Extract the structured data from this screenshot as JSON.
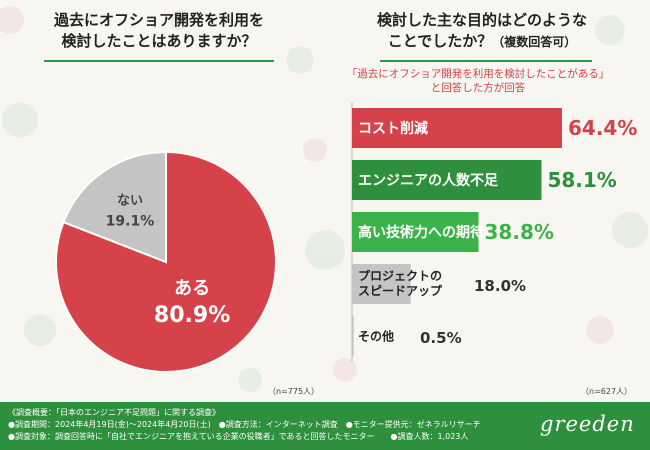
{
  "left_panel": {
    "title_line1": "過去にオフショア開発を利用を",
    "title_line2": "検討したことはありますか？",
    "sample_size": "（n=775人）"
  },
  "right_panel": {
    "title_line1": "検討した主な目的はどのような",
    "title_line2": "ことでしたか？",
    "title_note": "（複数回答可）",
    "subtitle_line1": "「過去にオフショア開発を利用を検討したことがある」",
    "subtitle_line2": "と回答した方が回答",
    "sample_size": "（n=627人）"
  },
  "chart_data": [
    {
      "type": "pie",
      "categories": [
        "ある",
        "ない"
      ],
      "values": [
        80.9,
        19.1
      ],
      "value_labels": [
        "80.9%",
        "19.1%"
      ],
      "colors": [
        "#d6424a",
        "#c4c4c4"
      ]
    },
    {
      "type": "bar",
      "orientation": "horizontal",
      "categories": [
        "コスト削減",
        "エンジニアの人数不足",
        "高い技術力への期待",
        "プロジェクトのスピードアップ",
        "その他"
      ],
      "values": [
        64.4,
        58.1,
        38.8,
        18.0,
        0.5
      ],
      "value_labels": [
        "64.4%",
        "58.1%",
        "38.8%",
        "18.0%",
        "0.5%"
      ],
      "colors": [
        "#d6424a",
        "#2e8f3c",
        "#3cb34a",
        "#c4c4c4",
        "#c4c4c4"
      ],
      "xlim": [
        0,
        64.4
      ]
    }
  ],
  "footer": {
    "line1": "《調査概要：「日本のエンジニア不足問題」に関する調査》",
    "line2": "●調査期間：2024年4月19日(金)～2024年4月20日(土)　●調査方法：インターネット調査　●モニター提供元：ゼネラルリサーチ",
    "line3": "●調査対象：調査回答時に「自社でエンジニアを抱えている企業の役職者」であると回答したモニター　　●調査人数：1,023人",
    "brand": "greeden"
  },
  "colors": {
    "accent_green": "#2e8f3c",
    "accent_red": "#d6424a",
    "neutral_gray": "#c4c4c4"
  }
}
